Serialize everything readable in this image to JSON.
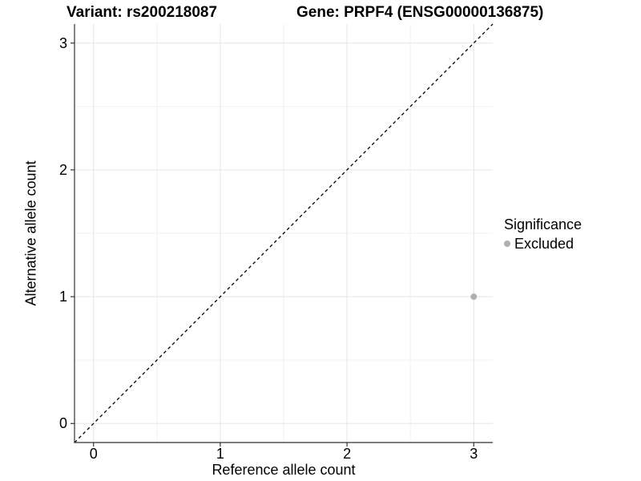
{
  "chart_data": {
    "type": "scatter",
    "title_left": "Variant: rs200218087",
    "title_right": "Gene: PRPF4 (ENSG00000136875)",
    "xlabel": "Reference allele count",
    "ylabel": "Alternative allele count",
    "xlim": [
      -0.15,
      3.15
    ],
    "ylim": [
      -0.15,
      3.15
    ],
    "x_ticks": [
      0,
      1,
      2,
      3
    ],
    "y_ticks": [
      0,
      1,
      2,
      3
    ],
    "grid": "major+minor",
    "panel_background": "#ffffff",
    "grid_color_major": "#e5e5e5",
    "grid_color_minor": "#f1f1f1",
    "axis_color": "#333333",
    "identity_line": {
      "style": "dashed",
      "color": "#000000",
      "from": [
        -0.15,
        -0.15
      ],
      "to": [
        3.15,
        3.15
      ]
    },
    "series": [
      {
        "name": "Excluded",
        "color": "#b0b0b0",
        "marker": "circle",
        "points": [
          [
            3,
            1
          ]
        ]
      }
    ],
    "legend": {
      "title": "Significance",
      "position": "right",
      "entries": [
        {
          "label": "Excluded",
          "color": "#b0b0b0"
        }
      ]
    }
  }
}
